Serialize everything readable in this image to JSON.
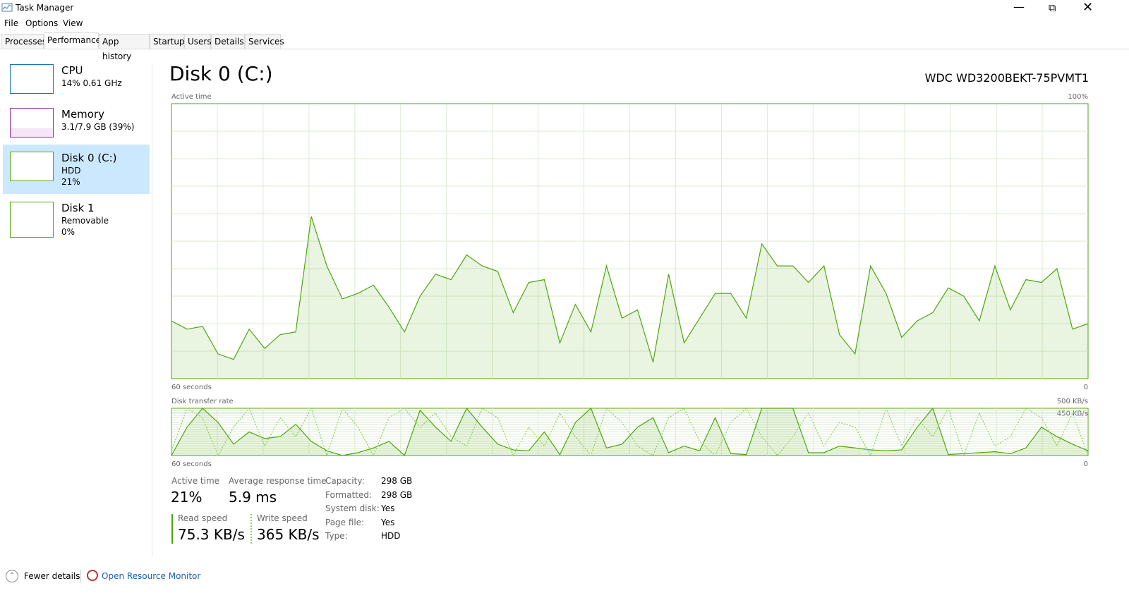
{
  "window": {
    "title": "Task Manager"
  },
  "menu": [
    "File",
    "Options",
    "View"
  ],
  "tabs": [
    "Processes",
    "Performance",
    "App history",
    "Startup",
    "Users",
    "Details",
    "Services"
  ],
  "sidebar": [
    {
      "name": "CPU",
      "lines": [
        "14% 0.61 GHz"
      ]
    },
    {
      "name": "Memory",
      "lines": [
        "3.1/7.9 GB (39%)"
      ]
    },
    {
      "name": "Disk 0 (C:)",
      "lines": [
        "HDD",
        "21%"
      ]
    },
    {
      "name": "Disk 1",
      "lines": [
        "Removable",
        "0%"
      ]
    }
  ],
  "header": {
    "title": "Disk 0 (C:)",
    "model": "WDC WD3200BEKT-75PVMT1"
  },
  "chart_data": [
    {
      "type": "area",
      "title": "Active time",
      "color": "#4da60c",
      "xlim": [
        60,
        0
      ],
      "xticks": [
        {
          "value": 60,
          "label": "60 seconds"
        },
        0
      ],
      "ylim": [
        0,
        100
      ],
      "yticks": [
        {
          "value": 100,
          "label": "100%"
        }
      ],
      "values": [
        21,
        18,
        19,
        9,
        7,
        18,
        11,
        16,
        17,
        59,
        41,
        29,
        31,
        34,
        26,
        17,
        30,
        38,
        36,
        45,
        41,
        39,
        24,
        35,
        36,
        13,
        27,
        17,
        41,
        22,
        25,
        6,
        38,
        13,
        22,
        31,
        31,
        22,
        49,
        41,
        41,
        35,
        41,
        16,
        9,
        41,
        31,
        15,
        21,
        24,
        33,
        30,
        21,
        41,
        25,
        36,
        35,
        40,
        18,
        20
      ]
    },
    {
      "type": "line",
      "title": "Disk transfer rate",
      "color": "#4da60c",
      "xlim": [
        60,
        0
      ],
      "xticks": [
        {
          "value": 60,
          "label": "60 seconds"
        },
        0
      ],
      "ylim": [
        0,
        500
      ],
      "yticks": [
        {
          "value": 500,
          "label": "500 KB/s"
        },
        {
          "value": 450,
          "label": "450 KB/s"
        }
      ],
      "series": [
        {
          "name": "Read speed",
          "color": "#4da60c",
          "values": [
            0,
            300,
            500,
            350,
            120,
            250,
            180,
            200,
            330,
            150,
            50,
            0,
            30,
            80,
            150,
            0,
            480,
            300,
            150,
            500,
            300,
            120,
            60,
            50,
            250,
            10,
            350,
            500,
            80,
            120,
            300,
            400,
            30,
            100,
            50,
            400,
            20,
            10,
            500,
            500,
            500,
            30,
            30,
            100,
            80,
            60,
            50,
            60,
            300,
            500,
            10,
            20,
            30,
            40,
            20,
            80,
            300,
            200,
            120,
            50
          ]
        },
        {
          "name": "Write speed",
          "color": "#8fd05a",
          "values": [
            50,
            500,
            400,
            0,
            300,
            500,
            100,
            400,
            200,
            500,
            0,
            500,
            300,
            0,
            400,
            500,
            300,
            450,
            200,
            100,
            500,
            400,
            0,
            300,
            100,
            450,
            200,
            0,
            500,
            350,
            100,
            0,
            400,
            500,
            150,
            0,
            350,
            500,
            200,
            0,
            200,
            450,
            100,
            350,
            300,
            0,
            500,
            100,
            400,
            200,
            500,
            0,
            450,
            100,
            200,
            500,
            400,
            100,
            450,
            0
          ]
        }
      ]
    }
  ],
  "stats": {
    "active_time": {
      "label": "Active time",
      "value": "21%"
    },
    "response": {
      "label": "Average response time",
      "value": "5.9 ms"
    },
    "read": {
      "label": "Read speed",
      "value": "75.3 KB/s"
    },
    "write": {
      "label": "Write speed",
      "value": "365 KB/s"
    },
    "props": [
      [
        "Capacity:",
        "298 GB"
      ],
      [
        "Formatted:",
        "298 GB"
      ],
      [
        "System disk:",
        "Yes"
      ],
      [
        "Page file:",
        "Yes"
      ],
      [
        "Type:",
        "HDD"
      ]
    ]
  },
  "footer": {
    "fewer": "Fewer details",
    "monitor": "Open Resource Monitor"
  }
}
